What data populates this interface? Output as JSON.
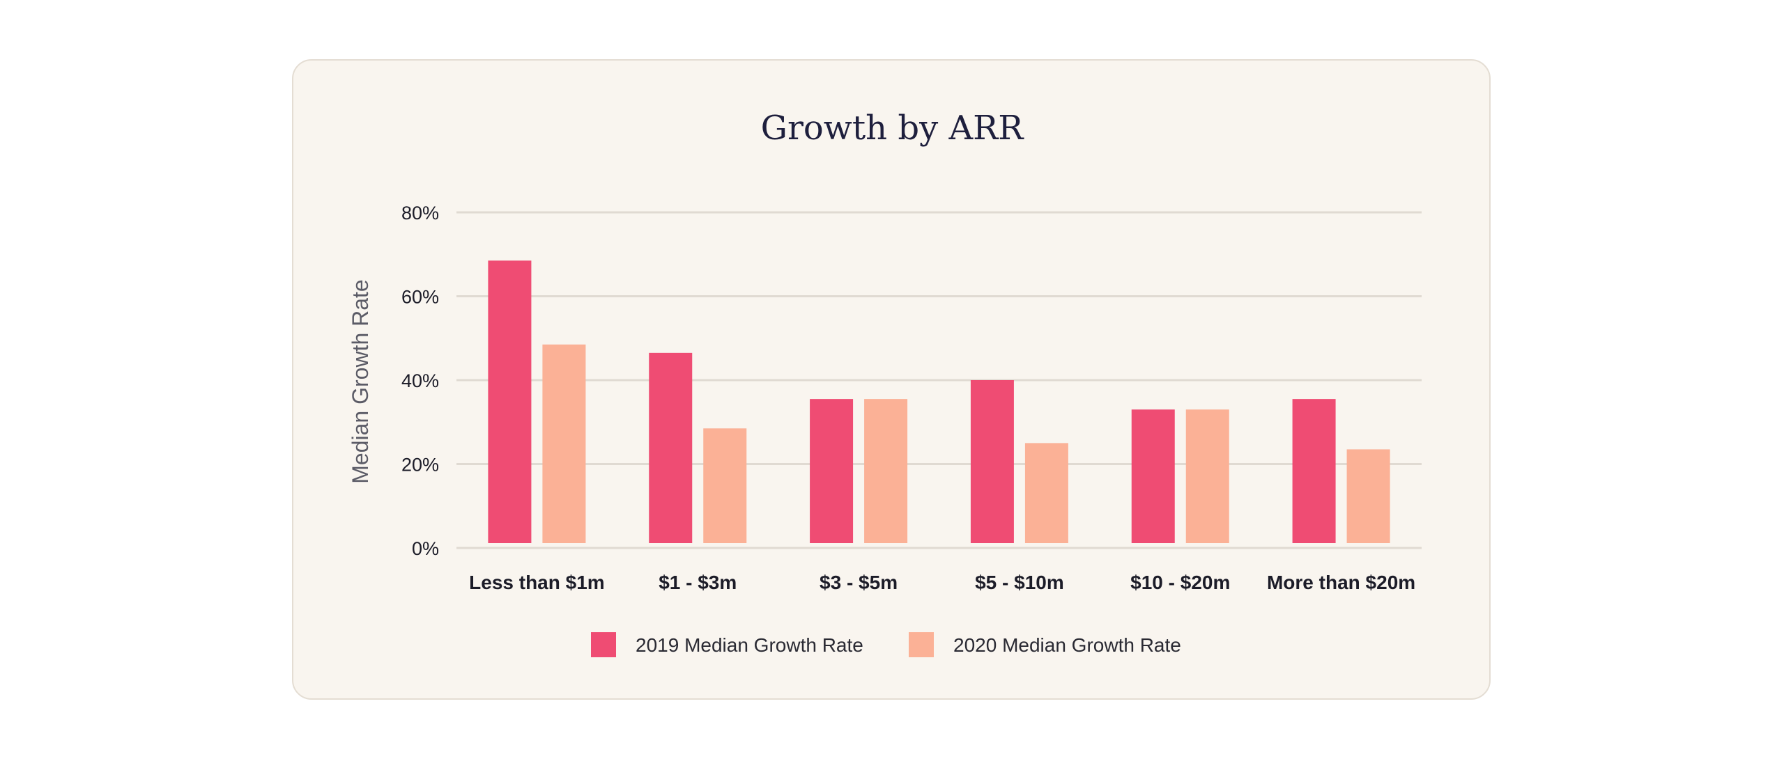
{
  "chart_data": {
    "type": "bar",
    "title": "Growth by ARR",
    "ylabel": "Median Growth Rate",
    "xlabel": "",
    "ylim": [
      0,
      80
    ],
    "yticks": [
      0,
      20,
      40,
      60,
      80
    ],
    "ytick_labels": [
      "0%",
      "20%",
      "40%",
      "60%",
      "80%"
    ],
    "categories": [
      "Less than $1m",
      "$1 - $3m",
      "$3 - $5m",
      "$5 - $10m",
      "$10 - $20m",
      "More than $20m"
    ],
    "series": [
      {
        "name": "2019 Median Growth Rate",
        "color": "#ef4c73",
        "values": [
          68.5,
          46.5,
          35.5,
          40,
          33,
          35.5
        ]
      },
      {
        "name": "2020 Median Growth Rate",
        "color": "#fbb196",
        "values": [
          48.5,
          28.5,
          35.5,
          25,
          33,
          23.5
        ]
      }
    ],
    "grid": true,
    "legend": "bottom"
  }
}
